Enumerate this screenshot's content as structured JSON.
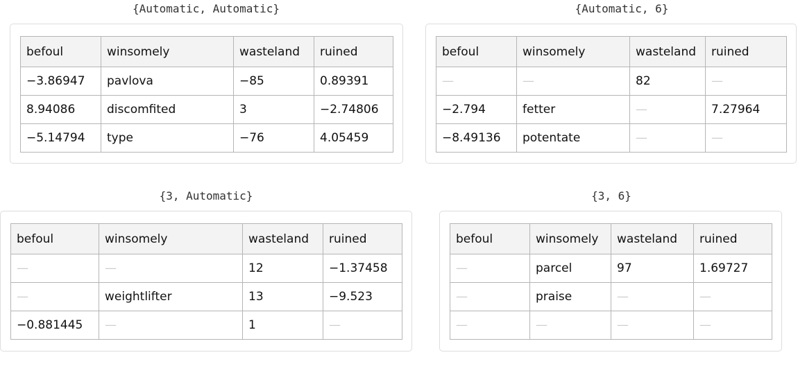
{
  "panels": [
    {
      "label": "{Automatic, Automatic}",
      "header": [
        "befoul",
        "winsomely",
        "wasteland",
        "ruined"
      ],
      "rows": [
        [
          "−3.86947",
          "pavlova",
          "−85",
          "0.89391"
        ],
        [
          "8.94086",
          "discomfited",
          "3",
          "−2.74806"
        ],
        [
          "−5.14794",
          "type",
          "−76",
          "4.05459"
        ]
      ]
    },
    {
      "label": "{Automatic, 6}",
      "header": [
        "befoul",
        "winsomely",
        "wasteland",
        "ruined"
      ],
      "rows": [
        [
          "—",
          "—",
          "82",
          "—"
        ],
        [
          "−2.794",
          "fetter",
          "—",
          "7.27964"
        ],
        [
          "−8.49136",
          "potentate",
          "—",
          "—"
        ]
      ]
    },
    {
      "label": "{3, Automatic}",
      "header": [
        "befoul",
        "winsomely",
        "wasteland",
        "ruined"
      ],
      "rows": [
        [
          "—",
          "—",
          "12",
          "−1.37458"
        ],
        [
          "—",
          "weightlifter",
          "13",
          "−9.523"
        ],
        [
          "−0.881445",
          "—",
          "1",
          "—"
        ]
      ]
    },
    {
      "label": "{3, 6}",
      "header": [
        "befoul",
        "winsomely",
        "wasteland",
        "ruined"
      ],
      "rows": [
        [
          "—",
          "parcel",
          "97",
          "1.69727"
        ],
        [
          "—",
          "praise",
          "—",
          "—"
        ],
        [
          "—",
          "—",
          "—",
          "—"
        ]
      ]
    }
  ]
}
